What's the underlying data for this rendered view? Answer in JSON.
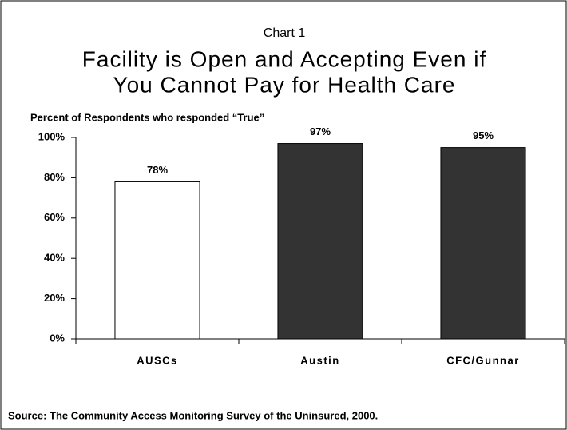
{
  "chart_data": {
    "type": "bar",
    "subtitle": "Chart 1",
    "title": [
      "Facility is Open and Accepting Even if",
      "You Cannot Pay for Health Care"
    ],
    "ylabel": "Percent of Respondents who responded “True”",
    "categories": [
      "AUSCs",
      "Austin",
      "CFC/Gunnar"
    ],
    "values": [
      78,
      97,
      95
    ],
    "value_labels": [
      "78%",
      "97%",
      "95%"
    ],
    "colors": [
      "#ffffff",
      "#333333",
      "#333333"
    ],
    "ylim": [
      0,
      100
    ],
    "yticks": [
      {
        "value": 0,
        "label": "0%"
      },
      {
        "value": 20,
        "label": "20%"
      },
      {
        "value": 40,
        "label": "40%"
      },
      {
        "value": 60,
        "label": "60%"
      },
      {
        "value": 80,
        "label": "80%"
      },
      {
        "value": 100,
        "label": "100%"
      }
    ],
    "grid": false,
    "source": "Source: The Community Access Monitoring Survey of the Uninsured, 2000."
  }
}
